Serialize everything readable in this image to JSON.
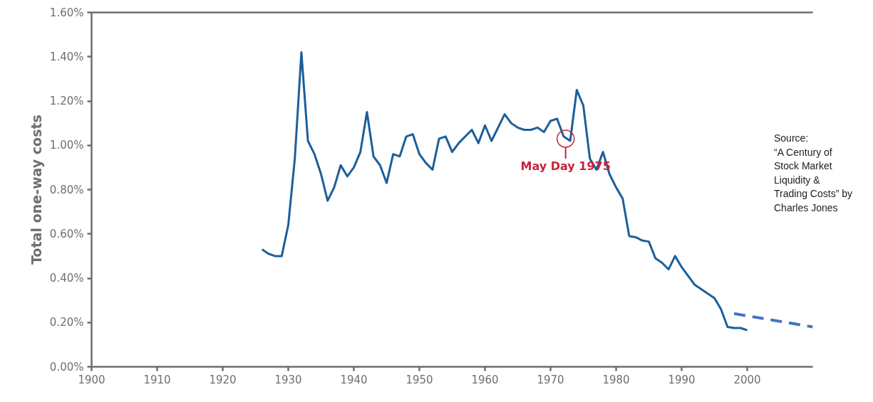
{
  "chart_data": {
    "type": "line",
    "ylabel": "Total one-way costs",
    "xlim": [
      1900,
      2010
    ],
    "xticks": [
      1900,
      1910,
      1920,
      1930,
      1940,
      1950,
      1960,
      1970,
      1980,
      1990,
      2000
    ],
    "ylim": [
      0,
      1.6
    ],
    "yticks": [
      {
        "value": 0,
        "label": "0.00%"
      },
      {
        "value": 0.2,
        "label": "0.20%"
      },
      {
        "value": 0.4,
        "label": "0.40%"
      },
      {
        "value": 0.6,
        "label": "0.60%"
      },
      {
        "value": 0.8,
        "label": "0.80%"
      },
      {
        "value": 1.0,
        "label": "1.00%"
      },
      {
        "value": 1.2,
        "label": "1.20%"
      },
      {
        "value": 1.4,
        "label": "1.40%"
      },
      {
        "value": 1.6,
        "label": "1.60%"
      }
    ],
    "grid": false,
    "marker": "none",
    "series": [
      {
        "color": "#1d5e9b",
        "line_style": "solid",
        "x": [
          1926,
          1927,
          1928,
          1929,
          1930,
          1931,
          1932,
          1933,
          1934,
          1935,
          1936,
          1937,
          1938,
          1939,
          1940,
          1941,
          1942,
          1943,
          1944,
          1945,
          1946,
          1947,
          1948,
          1949,
          1950,
          1951,
          1952,
          1953,
          1954,
          1955,
          1956,
          1957,
          1958,
          1959,
          1960,
          1961,
          1962,
          1963,
          1964,
          1965,
          1966,
          1967,
          1968,
          1969,
          1970,
          1971,
          1972,
          1973,
          1974,
          1975,
          1976,
          1977,
          1978,
          1979,
          1980,
          1981,
          1982,
          1983,
          1984,
          1985,
          1986,
          1987,
          1988,
          1989,
          1990,
          1991,
          1992,
          1993,
          1994,
          1995,
          1996,
          1997,
          1998,
          1999,
          2000
        ],
        "values": [
          0.53,
          0.51,
          0.5,
          0.5,
          0.64,
          0.94,
          1.42,
          1.02,
          0.96,
          0.87,
          0.75,
          0.81,
          0.91,
          0.86,
          0.9,
          0.97,
          1.15,
          0.95,
          0.91,
          0.83,
          0.96,
          0.95,
          1.04,
          1.05,
          0.96,
          0.92,
          0.89,
          1.03,
          1.04,
          0.97,
          1.01,
          1.04,
          1.07,
          1.01,
          1.09,
          1.02,
          1.08,
          1.14,
          1.1,
          1.08,
          1.07,
          1.07,
          1.08,
          1.06,
          1.11,
          1.12,
          1.04,
          1.02,
          1.25,
          1.18,
          0.94,
          0.89,
          0.97,
          0.87,
          0.81,
          0.76,
          0.59,
          0.585,
          0.57,
          0.565,
          0.49,
          0.47,
          0.44,
          0.5,
          0.45,
          0.41,
          0.37,
          0.35,
          0.33,
          0.31,
          0.26,
          0.18,
          0.175,
          0.175,
          0.165
        ]
      },
      {
        "color": "#4472c4",
        "line_style": "dashed",
        "x": [
          1998,
          2010
        ],
        "values": [
          0.24,
          0.18
        ]
      }
    ],
    "annotations": [
      {
        "text": "May Day 1975",
        "x": 1972.3,
        "y": 1.03
      },
      "Source:\n“A Century of\nStock Market\nLiquidity &\nTrading Costs” by\nCharles Jones"
    ]
  }
}
